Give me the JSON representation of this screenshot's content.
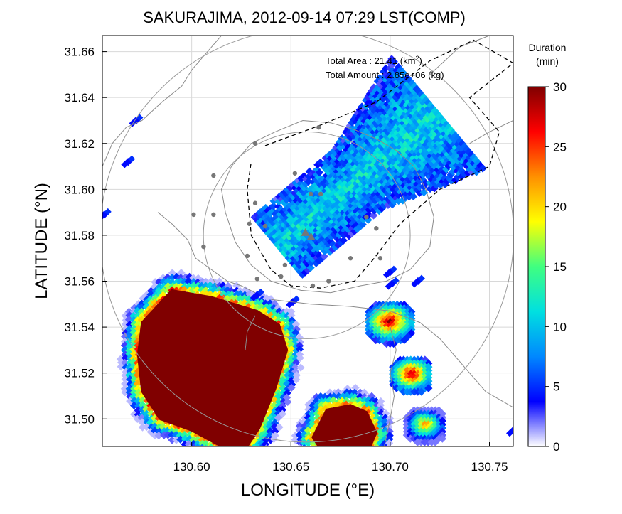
{
  "chart_data": {
    "type": "heatmap",
    "title": "SAKURAJIMA, 2012-09-14 07:29 LST(COMP)",
    "xlabel": "LONGITUDE (°E)",
    "ylabel": "LATITUDE (°N)",
    "xlim": [
      130.555,
      130.762
    ],
    "ylim": [
      31.488,
      31.667
    ],
    "xticks": [
      130.6,
      130.65,
      130.7,
      130.75
    ],
    "xtick_labels": [
      "130.60",
      "130.65",
      "130.70",
      "130.75"
    ],
    "yticks": [
      31.5,
      31.52,
      31.54,
      31.56,
      31.58,
      31.6,
      31.62,
      31.64,
      31.66
    ],
    "ytick_labels": [
      "31.50",
      "31.52",
      "31.54",
      "31.56",
      "31.58",
      "31.60",
      "31.62",
      "31.64",
      "31.66"
    ],
    "grid": true,
    "annotations": {
      "total_area_label": "Total Area   : 21.41 (km",
      "total_area_sup": "2",
      "total_area_tail": ")",
      "total_amount": "Total Amount : 2.85e+06 (kg)"
    },
    "colorbar": {
      "title_line1": "Duration",
      "title_line2": "(min)",
      "min": 0,
      "max": 30,
      "ticks": [
        0,
        5,
        10,
        15,
        20,
        25,
        30
      ],
      "tick_labels": [
        "0",
        "5",
        "10",
        "15",
        "20",
        "25",
        "30"
      ],
      "colors": [
        "#ffffff",
        "#0000ff",
        "#0088ff",
        "#00e0e0",
        "#40ff80",
        "#ffff00",
        "#ff9000",
        "#ff0000",
        "#800000"
      ]
    },
    "volcano": {
      "name": "Sakurajima",
      "lon": 130.658,
      "lat": 31.58
    },
    "range_rings_km": [
      5,
      10
    ],
    "stations": [
      [
        130.632,
        31.62
      ],
      [
        130.664,
        31.627
      ],
      [
        130.611,
        31.606
      ],
      [
        130.652,
        31.607
      ],
      [
        130.66,
        31.598
      ],
      [
        130.632,
        31.594
      ],
      [
        130.601,
        31.589
      ],
      [
        130.611,
        31.589
      ],
      [
        130.637,
        31.584
      ],
      [
        130.629,
        31.585
      ],
      [
        130.606,
        31.575
      ],
      [
        130.628,
        31.571
      ],
      [
        130.645,
        31.562
      ],
      [
        130.633,
        31.561
      ],
      [
        130.647,
        31.567
      ],
      [
        130.661,
        31.558
      ],
      [
        130.669,
        31.56
      ],
      [
        130.68,
        31.57
      ],
      [
        130.693,
        31.583
      ],
      [
        130.695,
        31.57
      ],
      [
        130.688,
        31.588
      ],
      [
        130.665,
        31.598
      ]
    ],
    "cells": {
      "plume_ne": {
        "center": [
          130.684,
          31.604
        ],
        "u_axis": [
          0.77,
          0.64
        ],
        "half_len": 0.052,
        "half_w": 0.0075,
        "mean_min": 8,
        "spread_min": 3
      },
      "mass_sw": {
        "polygon": [
          [
            130.575,
            31.542
          ],
          [
            130.59,
            31.556
          ],
          [
            130.61,
            31.553
          ],
          [
            130.633,
            31.547
          ],
          [
            130.644,
            31.541
          ],
          [
            130.648,
            31.53
          ],
          [
            130.642,
            31.513
          ],
          [
            130.634,
            31.496
          ],
          [
            130.628,
            31.488
          ],
          [
            130.615,
            31.488
          ],
          [
            130.6,
            31.495
          ],
          [
            130.584,
            31.5
          ],
          [
            130.575,
            31.512
          ],
          [
            130.573,
            31.528
          ]
        ],
        "value_min": 30
      },
      "mass_se": {
        "polygon": [
          [
            130.661,
            31.492
          ],
          [
            130.668,
            31.504
          ],
          [
            130.68,
            31.506
          ],
          [
            130.688,
            31.503
          ],
          [
            130.693,
            31.494
          ],
          [
            130.69,
            31.488
          ],
          [
            130.664,
            31.488
          ]
        ],
        "value_min": 30
      },
      "small_core_1": {
        "center": [
          130.7,
          31.542
        ],
        "r": 0.0045,
        "value_min": 30
      },
      "small_core_2": {
        "center": [
          130.711,
          31.519
        ],
        "r": 0.004,
        "value_min": 30
      },
      "small_core_3": {
        "center": [
          130.718,
          31.497
        ],
        "r": 0.004,
        "value_min": 24
      }
    }
  }
}
